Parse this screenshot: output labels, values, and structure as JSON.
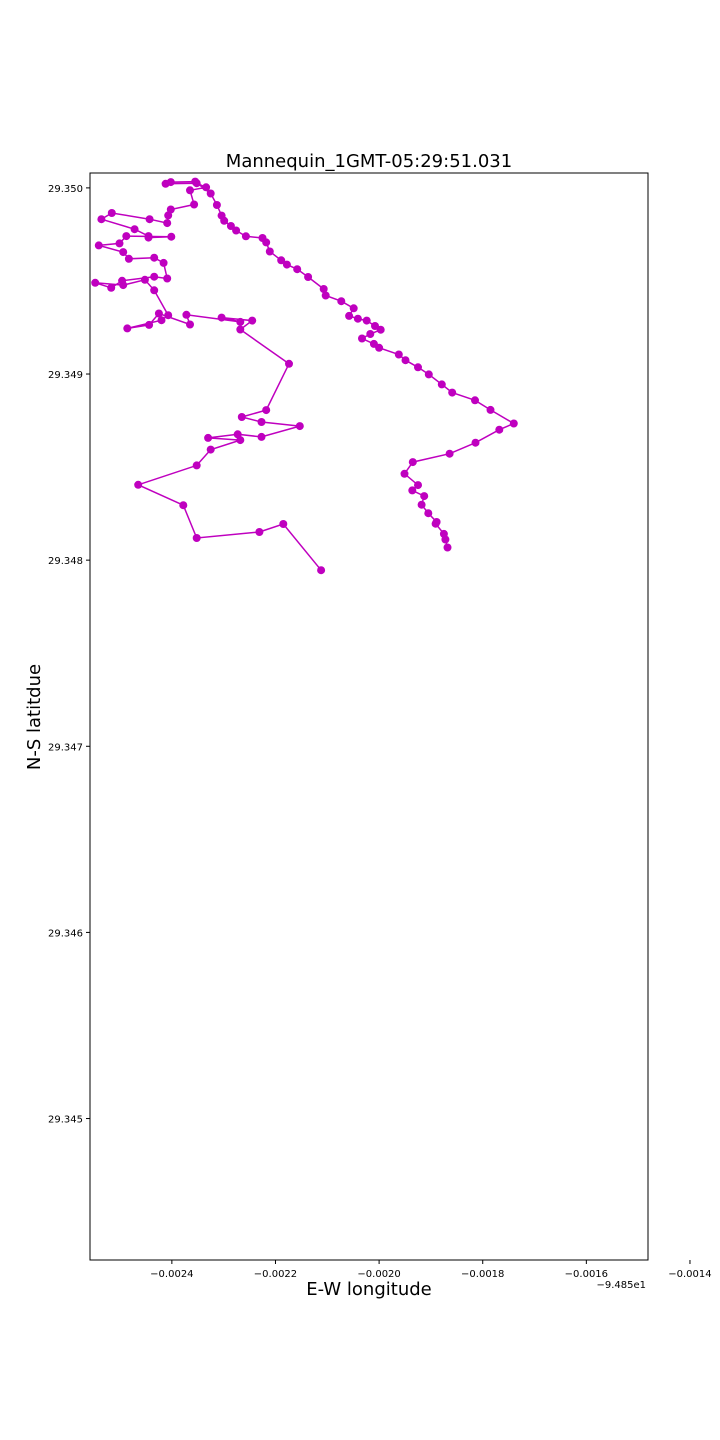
{
  "chart_data": {
    "type": "line",
    "title": "Mannequin_1GMT-05:29:51.031",
    "xlabel": "E-W longitude",
    "ylabel": "N-S latitdue",
    "x_offset_label": "−9.485e1",
    "xlim": [
      -94.852558,
      -94.851481
    ],
    "ylim": [
      29.34424,
      29.35008
    ],
    "x_ticks": [
      -94.8524,
      -94.8522,
      -94.852,
      -94.8518,
      -94.8516,
      -94.8514
    ],
    "x_tick_labels": [
      "−0.0024",
      "−0.0022",
      "−0.0020",
      "−0.0018",
      "−0.0016",
      "−0.0014"
    ],
    "y_ticks": [
      29.345,
      29.346,
      29.347,
      29.348,
      29.349,
      29.35
    ],
    "y_tick_labels": [
      "29.345",
      "29.346",
      "29.347",
      "29.348",
      "29.349",
      "29.350"
    ],
    "grid": false,
    "series": [
      {
        "color": "#bf00bf",
        "marker": "circle",
        "x": [
          -94.852112,
          -94.852185,
          -94.852231,
          -94.852352,
          -94.852378,
          -94.852465,
          -94.852352,
          -94.852325,
          -94.852268,
          -94.85233,
          -94.852273,
          -94.852227,
          -94.852153,
          -94.852227,
          -94.852265,
          -94.852218,
          -94.852174,
          -94.852268,
          -94.852245,
          -94.852304,
          -94.852268,
          -94.852372,
          -94.852365,
          -94.852425,
          -94.852444,
          -94.852486,
          -94.85242,
          -94.852407,
          -94.852434,
          -94.852452,
          -94.852494,
          -94.852548,
          -94.852517,
          -94.852496,
          -94.852434,
          -94.852409,
          -94.852416,
          -94.852434,
          -94.852483,
          -94.852494,
          -94.852541,
          -94.852501,
          -94.852488,
          -94.852401,
          -94.852445,
          -94.852445,
          -94.852472,
          -94.852536,
          -94.852516,
          -94.852443,
          -94.852409,
          -94.852407,
          -94.852402,
          -94.852357,
          -94.852365,
          -94.852334,
          -94.852352,
          -94.852412,
          -94.852402,
          -94.852355,
          -94.852325,
          -94.852313,
          -94.852304,
          -94.852299,
          -94.852286,
          -94.852276,
          -94.852257,
          -94.852225,
          -94.852218,
          -94.852211,
          -94.852189,
          -94.852178,
          -94.852158,
          -94.852137,
          -94.852107,
          -94.852103,
          -94.852073,
          -94.852049,
          -94.852058,
          -94.852041,
          -94.852024,
          -94.852008,
          -94.851997,
          -94.852017,
          -94.852033,
          -94.85201,
          -94.852,
          -94.851962,
          -94.851949,
          -94.851925,
          -94.851904,
          -94.851879,
          -94.851859,
          -94.851815,
          -94.851785,
          -94.85174,
          -94.851768,
          -94.851814,
          -94.851864,
          -94.851935,
          -94.851951,
          -94.851925,
          -94.851936,
          -94.851913,
          -94.851918,
          -94.851905,
          -94.851889,
          -94.851891,
          -94.851875,
          -94.851872,
          -94.851868
        ],
        "y": [
          29.347946,
          29.348194,
          29.348151,
          29.348119,
          29.348295,
          29.348405,
          29.348509,
          29.348594,
          29.348645,
          29.348657,
          29.348676,
          29.348662,
          29.34872,
          29.348742,
          29.348769,
          29.348806,
          29.349055,
          29.349239,
          29.349287,
          29.349303,
          29.34928,
          29.349318,
          29.349266,
          29.349325,
          29.349264,
          29.349245,
          29.349289,
          29.349316,
          29.34945,
          29.349506,
          29.349478,
          29.34949,
          29.349463,
          29.349501,
          29.349523,
          29.349513,
          29.349597,
          29.349625,
          29.349619,
          29.349655,
          29.349691,
          29.349702,
          29.349741,
          29.349738,
          29.349733,
          29.349741,
          29.349778,
          29.349832,
          29.349865,
          29.349832,
          29.349811,
          29.349852,
          29.349884,
          29.349911,
          29.349987,
          29.350003,
          29.350025,
          29.350022,
          29.350031,
          29.350034,
          29.34997,
          29.349908,
          29.349851,
          29.349823,
          29.349795,
          29.349771,
          29.34974,
          29.349731,
          29.349707,
          29.349658,
          29.349611,
          29.349588,
          29.349563,
          29.349521,
          29.349457,
          29.349422,
          29.349391,
          29.349353,
          29.349312,
          29.349297,
          29.349287,
          29.349258,
          29.349238,
          29.349215,
          29.349191,
          29.349162,
          29.349141,
          29.349105,
          29.349074,
          29.349036,
          29.348998,
          29.348944,
          29.3489,
          29.348859,
          29.348807,
          29.348734,
          29.348701,
          29.348631,
          29.348572,
          29.348527,
          29.348464,
          29.348403,
          29.348375,
          29.348344,
          29.348298,
          29.348252,
          29.348205,
          29.348196,
          29.348141,
          29.348111,
          29.348068
        ]
      }
    ]
  }
}
